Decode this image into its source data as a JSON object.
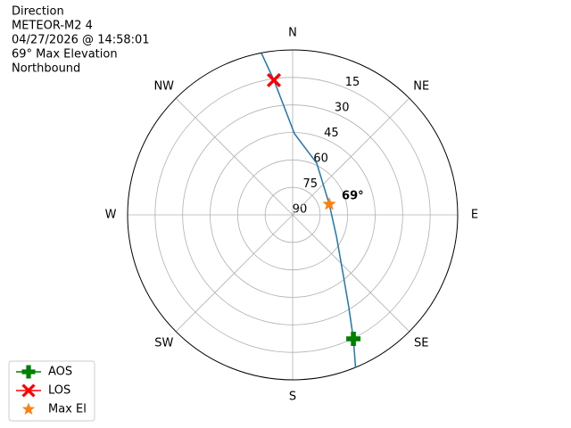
{
  "chart_data": {
    "type": "polar",
    "title_lines": [
      "Direction",
      "METEOR-M2 4",
      "04/27/2026 @ 14:58:01",
      "69° Max Elevation",
      "Northbound"
    ],
    "xlim": [
      0,
      360
    ],
    "xticks": [
      {
        "value": 0,
        "label": "N"
      },
      {
        "value": 45,
        "label": "NE"
      },
      {
        "value": 90,
        "label": "E"
      },
      {
        "value": 135,
        "label": "SE"
      },
      {
        "value": 180,
        "label": "S"
      },
      {
        "value": 225,
        "label": "SW"
      },
      {
        "value": 270,
        "label": "W"
      },
      {
        "value": 315,
        "label": "NW"
      }
    ],
    "ylim": [
      90,
      0
    ],
    "yticks": [
      15,
      30,
      45,
      60,
      75,
      90
    ],
    "grid": true,
    "series": [
      {
        "color": "#1f77b4",
        "marker": "line",
        "x": [
          157.6,
          153.9,
          148.8,
          140.4,
          116.1,
          73.7,
          25,
          1.3,
          352.1,
          349.1
        ],
        "y": [
          0,
          14.7,
          30.8,
          46.5,
          63.4,
          69.2,
          58.9,
          45.7,
          15.8,
          0.3
        ]
      },
      {
        "name": "AOS",
        "color": "green",
        "marker": "P",
        "x": [
          153.9
        ],
        "y": [
          14.7
        ]
      },
      {
        "name": "LOS",
        "color": "red",
        "marker": "X",
        "x": [
          352.1
        ],
        "y": [
          15.8
        ]
      },
      {
        "name": "Max El",
        "color": "#ff7f0e",
        "marker": "*",
        "x": [
          73.7
        ],
        "y": [
          69.2
        ]
      }
    ],
    "annotations": [
      {
        "text": "69°",
        "x": 73.7,
        "y": 69.2
      }
    ],
    "legend": "lower left"
  }
}
